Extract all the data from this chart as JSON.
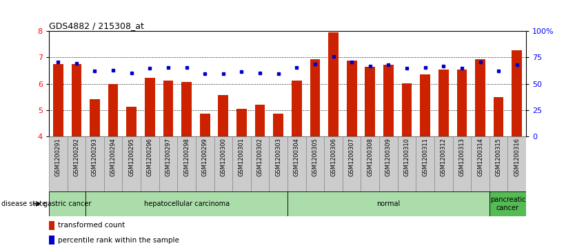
{
  "title": "GDS4882 / 215308_at",
  "samples": [
    "GSM1200291",
    "GSM1200292",
    "GSM1200293",
    "GSM1200294",
    "GSM1200295",
    "GSM1200296",
    "GSM1200297",
    "GSM1200298",
    "GSM1200299",
    "GSM1200300",
    "GSM1200301",
    "GSM1200302",
    "GSM1200303",
    "GSM1200304",
    "GSM1200305",
    "GSM1200306",
    "GSM1200307",
    "GSM1200308",
    "GSM1200309",
    "GSM1200310",
    "GSM1200311",
    "GSM1200312",
    "GSM1200313",
    "GSM1200314",
    "GSM1200315",
    "GSM1200316"
  ],
  "bar_values": [
    6.75,
    6.75,
    5.4,
    5.98,
    5.13,
    6.22,
    6.13,
    6.08,
    4.85,
    5.58,
    5.05,
    5.2,
    4.87,
    6.12,
    6.93,
    7.95,
    6.88,
    6.65,
    6.72,
    6.02,
    6.37,
    6.53,
    6.53,
    6.93,
    5.5,
    7.28
  ],
  "dot_values": [
    6.83,
    6.78,
    6.48,
    6.52,
    6.4,
    6.6,
    6.62,
    6.62,
    6.38,
    6.38,
    6.45,
    6.42,
    6.38,
    6.62,
    6.75,
    7.05,
    6.82,
    6.68,
    6.72,
    6.58,
    6.63,
    6.68,
    6.58,
    6.83,
    6.5,
    6.72
  ],
  "disease_groups": [
    {
      "label": "gastric cancer",
      "start": 0,
      "end": 2,
      "color": "#aaddaa"
    },
    {
      "label": "hepatocellular carcinoma",
      "start": 2,
      "end": 13,
      "color": "#aaddaa"
    },
    {
      "label": "normal",
      "start": 13,
      "end": 24,
      "color": "#aaddaa"
    },
    {
      "label": "pancreatic\ncancer",
      "start": 24,
      "end": 26,
      "color": "#55bb55"
    }
  ],
  "ylim_left": [
    4,
    8
  ],
  "yticks_left": [
    4,
    5,
    6,
    7,
    8
  ],
  "ylim_right": [
    0,
    100
  ],
  "yticks_right": [
    0,
    25,
    50,
    75,
    100
  ],
  "bar_color": "#cc2200",
  "dot_color": "#0000cc",
  "bar_width": 0.55,
  "bg_color": "#ffffff",
  "plot_bg": "#ffffff",
  "tick_label_bg": "#cccccc",
  "tick_label_alt": "#bbbbbb"
}
